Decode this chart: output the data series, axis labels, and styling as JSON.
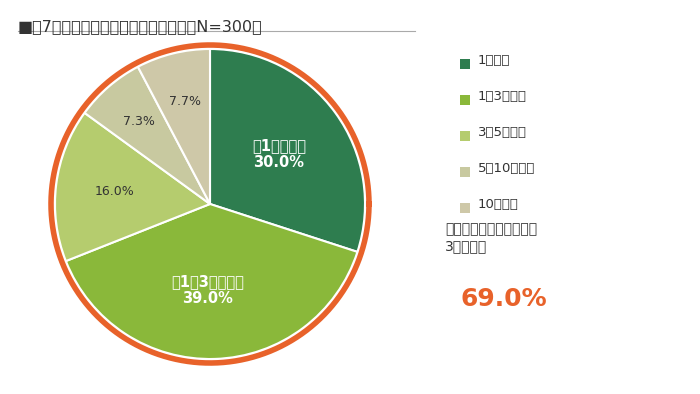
{
  "title": "■図7「家庭菜園の継続年数」（全体　N=300）",
  "slices": [
    30.0,
    39.0,
    16.0,
    7.3,
    7.7
  ],
  "colors": [
    "#2e7d4f",
    "#8ab83a",
    "#b5cc6e",
    "#c8c9a0",
    "#cec8a8"
  ],
  "legend_labels": [
    "1年未満",
    "1～3年未満",
    "3～5年未満",
    "5～10年未満",
    "10年以上"
  ],
  "ring_color": "#e8622a",
  "annotation_text1": "「家庭菜園の継続期間は",
  "annotation_text2": "3年未満」",
  "annotation_pct": "69.0%",
  "annotation_color": "#e8622a",
  "bg_color": "#ffffff",
  "title_color": "#333333",
  "label0_line1": "「1年未満」",
  "label0_line2": "30.0%",
  "label1_line1": "「1～3年未満」",
  "label1_line2": "39.0%",
  "label2": "16.0%",
  "label3": "7.3%",
  "label4": "7.7%"
}
